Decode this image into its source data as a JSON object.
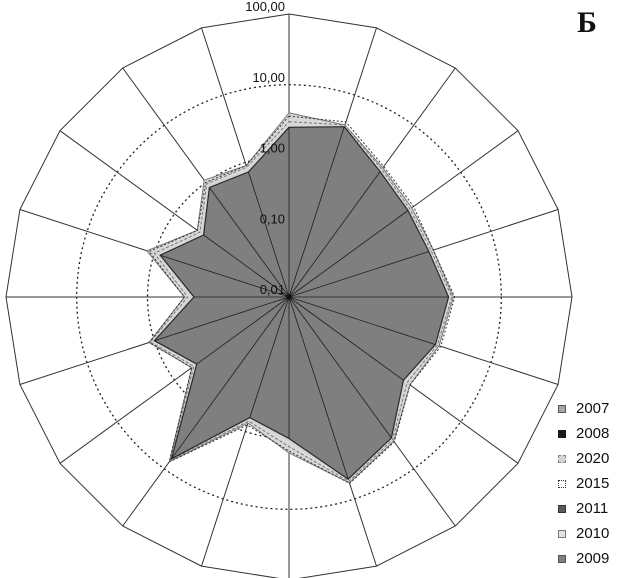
{
  "panel_label": "Б",
  "chart_data": {
    "type": "radar",
    "scale": "log",
    "axis_count": 20,
    "ticks": [
      {
        "value": 0.01,
        "label": "0,01"
      },
      {
        "value": 0.1,
        "label": "0,10"
      },
      {
        "value": 1,
        "label": "1,00"
      },
      {
        "value": 10,
        "label": "10,00"
      },
      {
        "value": 100,
        "label": "100,00"
      }
    ],
    "rmin": 0.01,
    "rmax": 100,
    "grid": true,
    "legend_position": "bottom-right",
    "series": [
      {
        "name": "2007",
        "color": "#a6a6a6",
        "values": [
          2.8,
          3.5,
          1.6,
          1.25,
          1.25,
          1.9,
          1.6,
          1.1,
          3.0,
          5.4,
          1.1,
          0.7,
          7.0,
          0.45,
          1.1,
          0.25,
          0.9,
          0.35,
          0.9,
          0.8
        ]
      },
      {
        "name": "2008",
        "color": "#1a1a1a",
        "values": [
          2.4,
          3.3,
          1.5,
          1.2,
          1.2,
          1.8,
          1.5,
          1.0,
          2.8,
          5.0,
          1.0,
          0.6,
          6.6,
          0.4,
          1.0,
          0.22,
          0.8,
          0.3,
          0.8,
          0.7
        ]
      },
      {
        "name": "2020",
        "color": "#d4d4d4",
        "values": [
          4.0,
          3.6,
          1.8,
          1.4,
          1.4,
          2.1,
          1.7,
          1.3,
          3.3,
          5.8,
          1.6,
          0.75,
          7.5,
          0.5,
          1.2,
          0.3,
          1.3,
          0.4,
          1.1,
          0.9
        ]
      },
      {
        "name": "2015",
        "color": "#6a6a6a",
        "values": [
          3.6,
          4.0,
          1.9,
          1.5,
          1.4,
          2.2,
          1.8,
          1.3,
          3.4,
          5.9,
          1.5,
          0.8,
          7.6,
          0.5,
          1.2,
          0.3,
          1.2,
          0.4,
          1.0,
          0.9
        ]
      },
      {
        "name": "2011",
        "color": "#5a5a5a",
        "values": [
          2.6,
          3.4,
          1.6,
          1.2,
          1.2,
          1.8,
          1.5,
          1.0,
          2.9,
          5.2,
          1.05,
          0.65,
          6.8,
          0.42,
          1.05,
          0.23,
          0.85,
          0.32,
          0.85,
          0.75
        ]
      },
      {
        "name": "2010",
        "color": "#d9d9d9",
        "values": [
          3.0,
          3.6,
          1.7,
          1.3,
          1.3,
          2.0,
          1.6,
          1.15,
          3.1,
          5.5,
          1.3,
          0.7,
          7.1,
          0.46,
          1.15,
          0.27,
          1.0,
          0.36,
          0.95,
          0.85
        ]
      },
      {
        "name": "2009",
        "color": "#7f7f7f",
        "values": [
          2.5,
          3.4,
          1.55,
          1.2,
          1.2,
          1.8,
          1.5,
          1.0,
          2.9,
          5.1,
          1.0,
          0.62,
          6.7,
          0.41,
          1.0,
          0.22,
          0.82,
          0.31,
          0.82,
          0.72
        ]
      }
    ]
  }
}
